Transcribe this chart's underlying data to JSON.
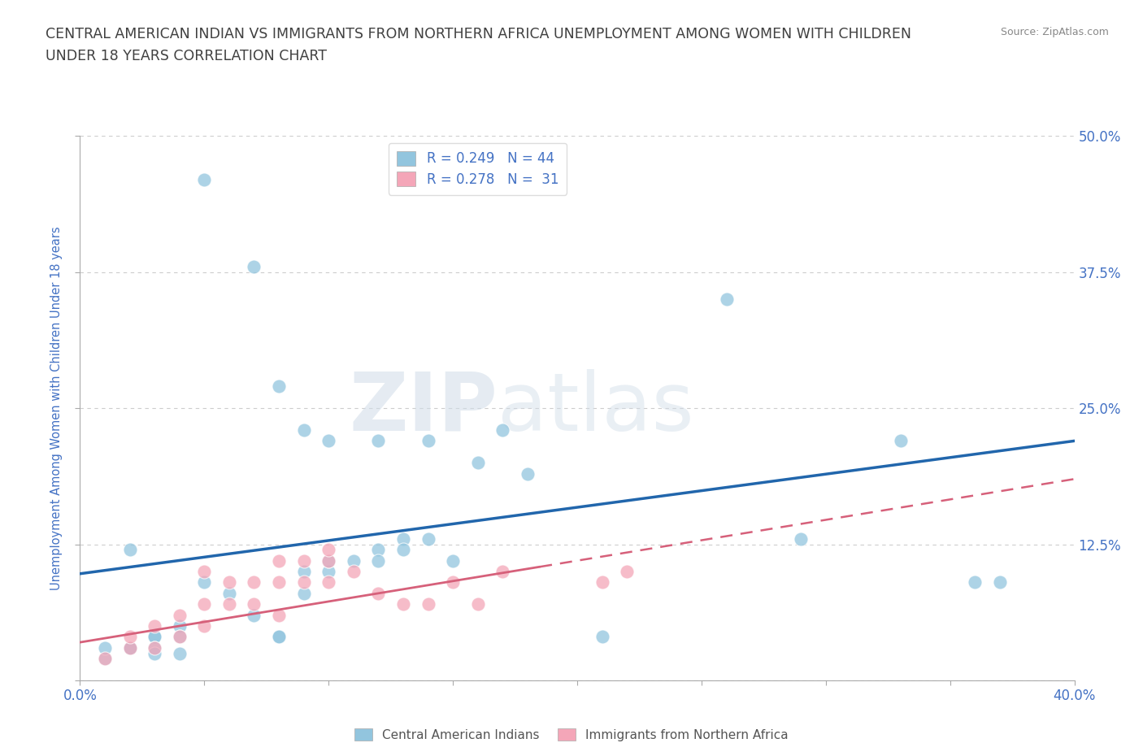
{
  "title_line1": "CENTRAL AMERICAN INDIAN VS IMMIGRANTS FROM NORTHERN AFRICA UNEMPLOYMENT AMONG WOMEN WITH CHILDREN",
  "title_line2": "UNDER 18 YEARS CORRELATION CHART",
  "source": "Source: ZipAtlas.com",
  "ylabel": "Unemployment Among Women with Children Under 18 years",
  "xlim": [
    0.0,
    0.4
  ],
  "ylim": [
    -0.02,
    0.52
  ],
  "plot_ylim": [
    0.0,
    0.5
  ],
  "blue_color": "#92c5de",
  "pink_color": "#f4a6b8",
  "blue_line_color": "#2166ac",
  "pink_line_color": "#d6607a",
  "R_blue": 0.249,
  "N_blue": 44,
  "R_pink": 0.278,
  "N_pink": 31,
  "legend_label_blue": "Central American Indians",
  "legend_label_pink": "Immigrants from Northern Africa",
  "watermark_zip": "ZIP",
  "watermark_atlas": "atlas",
  "blue_scatter_x": [
    0.02,
    0.05,
    0.07,
    0.05,
    0.06,
    0.07,
    0.08,
    0.08,
    0.09,
    0.09,
    0.1,
    0.1,
    0.11,
    0.12,
    0.12,
    0.13,
    0.13,
    0.14,
    0.15,
    0.17,
    0.04,
    0.04,
    0.03,
    0.03,
    0.02,
    0.01,
    0.01,
    0.02,
    0.03,
    0.08,
    0.09,
    0.1,
    0.12,
    0.14,
    0.16,
    0.18,
    0.21,
    0.26,
    0.29,
    0.33,
    0.36,
    0.37,
    0.03,
    0.04
  ],
  "blue_scatter_y": [
    0.12,
    0.46,
    0.38,
    0.09,
    0.08,
    0.06,
    0.04,
    0.04,
    0.08,
    0.1,
    0.1,
    0.11,
    0.11,
    0.12,
    0.11,
    0.13,
    0.12,
    0.13,
    0.11,
    0.23,
    0.05,
    0.04,
    0.04,
    0.04,
    0.03,
    0.02,
    0.03,
    0.03,
    0.03,
    0.27,
    0.23,
    0.22,
    0.22,
    0.22,
    0.2,
    0.19,
    0.04,
    0.35,
    0.13,
    0.22,
    0.09,
    0.09,
    0.025,
    0.025
  ],
  "pink_scatter_x": [
    0.01,
    0.02,
    0.02,
    0.03,
    0.03,
    0.04,
    0.04,
    0.05,
    0.05,
    0.05,
    0.06,
    0.06,
    0.07,
    0.07,
    0.08,
    0.08,
    0.08,
    0.09,
    0.09,
    0.1,
    0.1,
    0.1,
    0.11,
    0.12,
    0.13,
    0.14,
    0.15,
    0.16,
    0.17,
    0.21,
    0.22
  ],
  "pink_scatter_y": [
    0.02,
    0.03,
    0.04,
    0.03,
    0.05,
    0.04,
    0.06,
    0.05,
    0.07,
    0.1,
    0.07,
    0.09,
    0.07,
    0.09,
    0.06,
    0.09,
    0.11,
    0.09,
    0.11,
    0.09,
    0.11,
    0.12,
    0.1,
    0.08,
    0.07,
    0.07,
    0.09,
    0.07,
    0.1,
    0.09,
    0.1
  ],
  "bg_color": "#ffffff",
  "grid_color": "#c8c8c8",
  "label_color": "#4472c4",
  "title_color": "#404040",
  "source_color": "#888888"
}
